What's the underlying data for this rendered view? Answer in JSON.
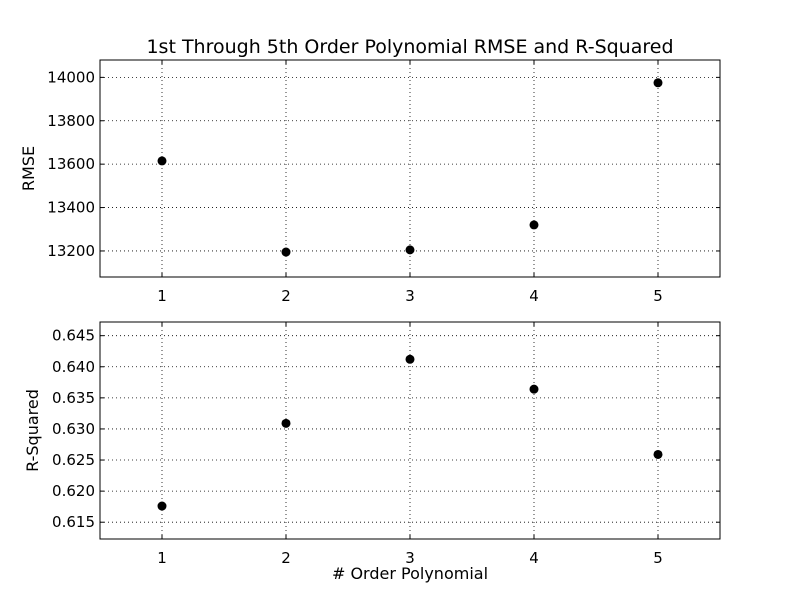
{
  "chart_data": [
    {
      "type": "scatter",
      "title": "1st Through 5th Order Polynomial RMSE and R-Squared",
      "xlabel": "",
      "ylabel": "RMSE",
      "x": [
        1,
        2,
        3,
        4,
        5
      ],
      "y": [
        13615,
        13195,
        13205,
        13320,
        13975
      ],
      "xlim": [
        0.5,
        5.5
      ],
      "ylim": [
        13080,
        14080
      ],
      "xticks": [
        "1",
        "2",
        "3",
        "4",
        "5"
      ],
      "yticks": [
        "13200",
        "13400",
        "13600",
        "13800",
        "14000"
      ],
      "grid": true,
      "marker": "circle",
      "color": "#000000"
    },
    {
      "type": "scatter",
      "title": "",
      "xlabel": "# Order Polynomial",
      "ylabel": "R-Squared",
      "x": [
        1,
        2,
        3,
        4,
        5
      ],
      "y": [
        0.6176,
        0.6309,
        0.6412,
        0.6364,
        0.6259
      ],
      "xlim": [
        0.5,
        5.5
      ],
      "ylim": [
        0.6123,
        0.6472
      ],
      "xticks": [
        "1",
        "2",
        "3",
        "4",
        "5"
      ],
      "yticks": [
        "0.615",
        "0.620",
        "0.625",
        "0.630",
        "0.635",
        "0.640",
        "0.645"
      ],
      "grid": true,
      "marker": "circle",
      "color": "#000000"
    }
  ]
}
